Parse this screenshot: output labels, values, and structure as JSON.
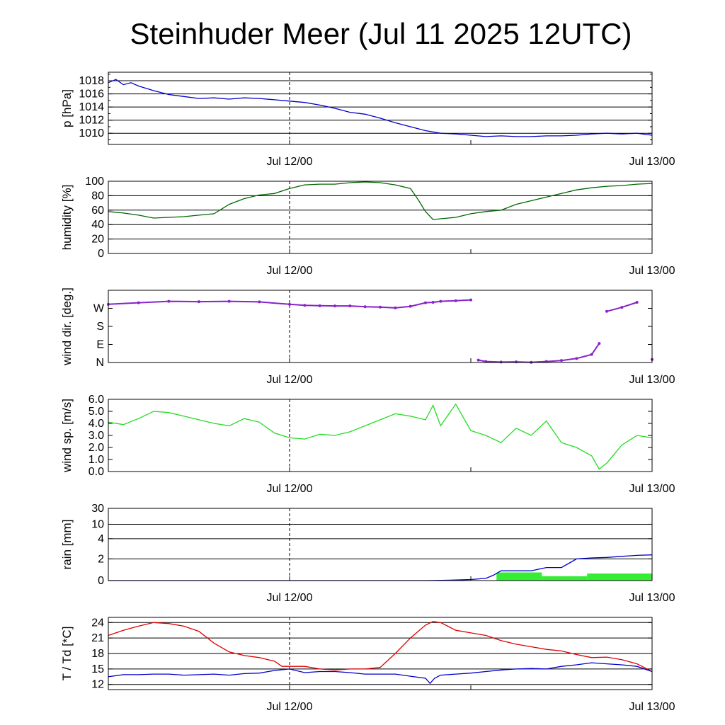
{
  "title": "Steinhuder Meer (Jul 11 2025 12UTC)",
  "x_tick_labels": [
    "Jul 12/00",
    "Jul 13/00"
  ],
  "chart_data": [
    {
      "id": "pressure",
      "type": "line",
      "ylabel": "p [hPa]",
      "ylim": [
        1008.3,
        1019.3
      ],
      "yticks": [
        1010,
        1012,
        1014,
        1016,
        1018
      ],
      "ytick_labels": [
        "1010",
        "1012",
        "1014",
        "1016",
        "1018"
      ],
      "grid": true,
      "series": [
        {
          "color": "#0000cc",
          "x": [
            0,
            0.5,
            1,
            1.5,
            2,
            3,
            4,
            5,
            6,
            7,
            8,
            9,
            10,
            11,
            12,
            13,
            14,
            15,
            16,
            17,
            18,
            19,
            20,
            21,
            22,
            23,
            24,
            25,
            26,
            27,
            28,
            29,
            30,
            31,
            32,
            33,
            34,
            35,
            36
          ],
          "y": [
            1017.7,
            1018.2,
            1017.4,
            1017.7,
            1017.2,
            1016.5,
            1015.9,
            1015.6,
            1015.3,
            1015.4,
            1015.2,
            1015.4,
            1015.3,
            1015.1,
            1014.9,
            1014.7,
            1014.3,
            1013.8,
            1013.2,
            1012.9,
            1012.3,
            1011.6,
            1011.0,
            1010.4,
            1010.0,
            1009.9,
            1009.7,
            1009.5,
            1009.6,
            1009.5,
            1009.5,
            1009.6,
            1009.6,
            1009.7,
            1009.9,
            1010.0,
            1009.9,
            1010.0,
            1009.7
          ]
        }
      ]
    },
    {
      "id": "humidity",
      "type": "line",
      "ylabel": "humidity [%]",
      "ylim": [
        0,
        100
      ],
      "yticks": [
        0,
        20,
        40,
        60,
        80,
        100
      ],
      "ytick_labels": [
        "0",
        "20",
        "40",
        "60",
        "80",
        "100"
      ],
      "grid": true,
      "series": [
        {
          "color": "#006600",
          "x": [
            0,
            1,
            2,
            3,
            4,
            5,
            6,
            7,
            8,
            9,
            10,
            11,
            12,
            13,
            14,
            15,
            16,
            17,
            18,
            19,
            20,
            20.5,
            21,
            21.5,
            22,
            23,
            24,
            25,
            26,
            27,
            28,
            29,
            30,
            31,
            32,
            33,
            34,
            35,
            36
          ],
          "y": [
            58,
            56,
            53,
            49,
            50,
            51,
            53,
            55,
            68,
            76,
            81,
            83,
            90,
            95,
            96,
            96,
            98,
            99,
            98,
            95,
            90,
            75,
            58,
            47,
            48,
            50,
            55,
            58,
            60,
            68,
            73,
            78,
            83,
            88,
            91,
            93,
            94,
            96,
            97
          ]
        }
      ]
    },
    {
      "id": "wind_dir",
      "type": "scatter",
      "ylabel": "wind dir. [deg.]",
      "ylim": [
        0,
        360
      ],
      "yticks": [
        0,
        90,
        180,
        270
      ],
      "ytick_labels": [
        "N",
        "E",
        "S",
        "W"
      ],
      "grid": false,
      "series": [
        {
          "color": "#8822cc",
          "x": [
            0,
            2,
            4,
            6,
            8,
            10,
            12,
            13,
            14,
            15,
            16,
            17,
            18,
            19,
            20,
            21,
            21.5,
            22,
            23,
            24,
            24.5,
            25,
            26,
            27,
            28,
            29,
            30,
            31,
            32,
            32.5,
            33,
            34,
            35,
            36
          ],
          "y": [
            290,
            298,
            305,
            303,
            305,
            302,
            290,
            285,
            283,
            282,
            282,
            278,
            276,
            272,
            280,
            298,
            300,
            305,
            308,
            312,
            12,
            5,
            2,
            3,
            1,
            5,
            10,
            20,
            40,
            95,
            255,
            275,
            300,
            15
          ]
        }
      ]
    },
    {
      "id": "wind_speed",
      "type": "line",
      "ylabel": "wind sp. [m/s]",
      "ylim": [
        0,
        6
      ],
      "yticks": [
        0,
        1,
        2,
        3,
        4,
        5,
        6
      ],
      "ytick_labels": [
        "0.0",
        "1.0",
        "2.0",
        "3.0",
        "4.0",
        "5.0",
        "6.0"
      ],
      "grid": false,
      "series": [
        {
          "color": "#22dd22",
          "x": [
            0,
            1,
            2,
            3,
            4,
            5,
            6,
            7,
            8,
            9,
            10,
            11,
            12,
            13,
            14,
            15,
            16,
            17,
            18,
            19,
            20,
            21,
            21.5,
            22,
            23,
            24,
            25,
            26,
            27,
            28,
            29,
            30,
            31,
            32,
            32.5,
            33,
            34,
            35,
            36
          ],
          "y": [
            4.1,
            3.9,
            4.4,
            5.0,
            4.9,
            4.6,
            4.3,
            4.0,
            3.8,
            4.4,
            4.1,
            3.2,
            2.8,
            2.7,
            3.1,
            3.0,
            3.3,
            3.8,
            4.3,
            4.8,
            4.6,
            4.3,
            5.5,
            3.8,
            5.6,
            3.4,
            3.0,
            2.4,
            3.6,
            3.0,
            4.2,
            2.4,
            2.0,
            1.3,
            0.2,
            0.7,
            2.2,
            3.0,
            2.8
          ]
        }
      ]
    },
    {
      "id": "rain",
      "type": "area",
      "ylabel": "rain [mm]",
      "ylim": [
        0,
        30
      ],
      "yticks": [
        0,
        2,
        4,
        10,
        30
      ],
      "ytick_labels": [
        "0",
        "2",
        "4",
        "10",
        "30"
      ],
      "grid": true,
      "bars": {
        "color": "#33ee33",
        "x_start": [
          25.7,
          28.7,
          31.7
        ],
        "x_end": [
          28.7,
          31.7,
          36
        ],
        "values": [
          0.75,
          0.4,
          0.65
        ]
      },
      "series": [
        {
          "color": "#0000cc",
          "x": [
            0,
            21,
            22,
            23,
            24,
            25,
            25.5,
            26,
            28,
            29,
            30,
            30.5,
            31,
            32,
            33,
            34,
            35,
            36
          ],
          "y": [
            0,
            0,
            0.02,
            0.05,
            0.1,
            0.2,
            0.5,
            0.9,
            0.9,
            1.2,
            1.2,
            1.6,
            2.0,
            2.1,
            2.15,
            2.25,
            2.35,
            2.4
          ]
        }
      ]
    },
    {
      "id": "temperature",
      "type": "line",
      "ylabel": "T / Td [*C]",
      "ylim": [
        11,
        25
      ],
      "yticks": [
        12,
        15,
        18,
        21,
        24
      ],
      "ytick_labels": [
        "12",
        "15",
        "18",
        "21",
        "24"
      ],
      "grid": true,
      "series": [
        {
          "color": "#dd0000",
          "x": [
            0,
            1,
            2,
            3,
            4,
            5,
            6,
            7,
            8,
            9,
            10,
            11,
            11.5,
            12,
            13,
            14,
            15,
            16,
            17,
            18,
            19,
            20,
            21,
            21.5,
            22,
            23,
            24,
            25,
            26,
            27,
            28,
            29,
            30,
            31,
            32,
            33,
            34,
            35,
            36
          ],
          "y": [
            21.5,
            22.5,
            23.3,
            24.0,
            23.8,
            23.3,
            22.3,
            20.0,
            18.3,
            17.6,
            17.2,
            16.5,
            15.5,
            15.5,
            15.5,
            15.0,
            14.8,
            15.0,
            15.0,
            15.3,
            18.0,
            21.0,
            23.5,
            24.2,
            24.0,
            22.5,
            22.0,
            21.5,
            20.5,
            19.8,
            19.3,
            18.8,
            18.5,
            17.8,
            17.2,
            17.3,
            16.8,
            16.0,
            14.5
          ]
        },
        {
          "color": "#0000cc",
          "x": [
            0,
            1,
            2,
            3,
            4,
            5,
            6,
            7,
            8,
            9,
            10,
            11,
            12,
            13,
            14,
            15,
            16,
            17,
            18,
            19,
            20,
            21,
            21.3,
            21.6,
            22,
            23,
            24,
            25,
            26,
            27,
            28,
            29,
            30,
            31,
            32,
            33,
            34,
            35,
            36
          ],
          "y": [
            13.5,
            13.9,
            13.9,
            14.0,
            14.0,
            13.8,
            13.9,
            14.0,
            13.8,
            14.1,
            14.2,
            14.7,
            15.0,
            14.3,
            14.5,
            14.5,
            14.3,
            14.0,
            14.0,
            14.0,
            13.6,
            13.2,
            12.2,
            13.2,
            13.8,
            14.0,
            14.2,
            14.5,
            14.8,
            15.0,
            15.1,
            15.0,
            15.5,
            15.8,
            16.2,
            16.0,
            15.8,
            15.5,
            14.5
          ]
        }
      ]
    }
  ]
}
